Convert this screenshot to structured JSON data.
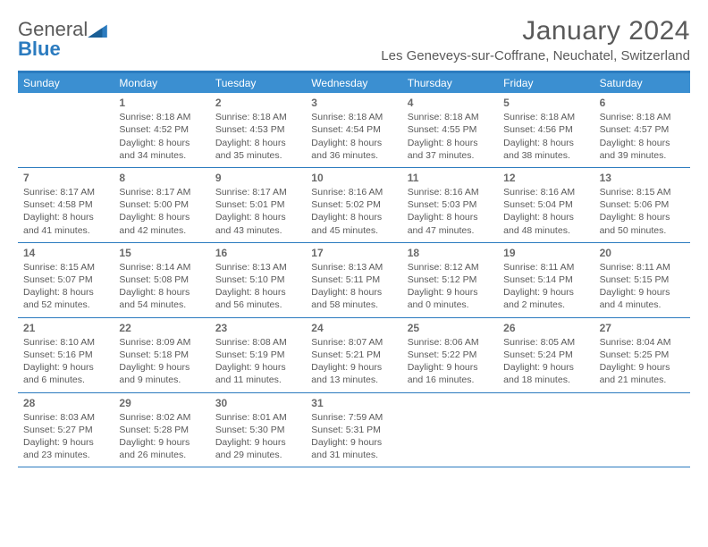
{
  "brand": {
    "part1": "General",
    "part2": "Blue"
  },
  "header": {
    "title": "January 2024",
    "location": "Les Geneveys-sur-Coffrane, Neuchatel, Switzerland"
  },
  "styling": {
    "accent_color": "#2b7bbf",
    "header_bg": "#3b8fd1",
    "header_text_color": "#ffffff",
    "body_text_color": "#5a5a5a",
    "day_num_color": "#6a6a6a",
    "background": "#ffffff",
    "title_fontsize": 30,
    "location_fontsize": 15,
    "weekday_fontsize": 12,
    "day_fontsize": 10.5,
    "day_num_fontsize": 12
  },
  "weekdays": [
    "Sunday",
    "Monday",
    "Tuesday",
    "Wednesday",
    "Thursday",
    "Friday",
    "Saturday"
  ],
  "weeks": [
    [
      {
        "num": "",
        "lines": []
      },
      {
        "num": "1",
        "lines": [
          "Sunrise: 8:18 AM",
          "Sunset: 4:52 PM",
          "Daylight: 8 hours",
          "and 34 minutes."
        ]
      },
      {
        "num": "2",
        "lines": [
          "Sunrise: 8:18 AM",
          "Sunset: 4:53 PM",
          "Daylight: 8 hours",
          "and 35 minutes."
        ]
      },
      {
        "num": "3",
        "lines": [
          "Sunrise: 8:18 AM",
          "Sunset: 4:54 PM",
          "Daylight: 8 hours",
          "and 36 minutes."
        ]
      },
      {
        "num": "4",
        "lines": [
          "Sunrise: 8:18 AM",
          "Sunset: 4:55 PM",
          "Daylight: 8 hours",
          "and 37 minutes."
        ]
      },
      {
        "num": "5",
        "lines": [
          "Sunrise: 8:18 AM",
          "Sunset: 4:56 PM",
          "Daylight: 8 hours",
          "and 38 minutes."
        ]
      },
      {
        "num": "6",
        "lines": [
          "Sunrise: 8:18 AM",
          "Sunset: 4:57 PM",
          "Daylight: 8 hours",
          "and 39 minutes."
        ]
      }
    ],
    [
      {
        "num": "7",
        "lines": [
          "Sunrise: 8:17 AM",
          "Sunset: 4:58 PM",
          "Daylight: 8 hours",
          "and 41 minutes."
        ]
      },
      {
        "num": "8",
        "lines": [
          "Sunrise: 8:17 AM",
          "Sunset: 5:00 PM",
          "Daylight: 8 hours",
          "and 42 minutes."
        ]
      },
      {
        "num": "9",
        "lines": [
          "Sunrise: 8:17 AM",
          "Sunset: 5:01 PM",
          "Daylight: 8 hours",
          "and 43 minutes."
        ]
      },
      {
        "num": "10",
        "lines": [
          "Sunrise: 8:16 AM",
          "Sunset: 5:02 PM",
          "Daylight: 8 hours",
          "and 45 minutes."
        ]
      },
      {
        "num": "11",
        "lines": [
          "Sunrise: 8:16 AM",
          "Sunset: 5:03 PM",
          "Daylight: 8 hours",
          "and 47 minutes."
        ]
      },
      {
        "num": "12",
        "lines": [
          "Sunrise: 8:16 AM",
          "Sunset: 5:04 PM",
          "Daylight: 8 hours",
          "and 48 minutes."
        ]
      },
      {
        "num": "13",
        "lines": [
          "Sunrise: 8:15 AM",
          "Sunset: 5:06 PM",
          "Daylight: 8 hours",
          "and 50 minutes."
        ]
      }
    ],
    [
      {
        "num": "14",
        "lines": [
          "Sunrise: 8:15 AM",
          "Sunset: 5:07 PM",
          "Daylight: 8 hours",
          "and 52 minutes."
        ]
      },
      {
        "num": "15",
        "lines": [
          "Sunrise: 8:14 AM",
          "Sunset: 5:08 PM",
          "Daylight: 8 hours",
          "and 54 minutes."
        ]
      },
      {
        "num": "16",
        "lines": [
          "Sunrise: 8:13 AM",
          "Sunset: 5:10 PM",
          "Daylight: 8 hours",
          "and 56 minutes."
        ]
      },
      {
        "num": "17",
        "lines": [
          "Sunrise: 8:13 AM",
          "Sunset: 5:11 PM",
          "Daylight: 8 hours",
          "and 58 minutes."
        ]
      },
      {
        "num": "18",
        "lines": [
          "Sunrise: 8:12 AM",
          "Sunset: 5:12 PM",
          "Daylight: 9 hours",
          "and 0 minutes."
        ]
      },
      {
        "num": "19",
        "lines": [
          "Sunrise: 8:11 AM",
          "Sunset: 5:14 PM",
          "Daylight: 9 hours",
          "and 2 minutes."
        ]
      },
      {
        "num": "20",
        "lines": [
          "Sunrise: 8:11 AM",
          "Sunset: 5:15 PM",
          "Daylight: 9 hours",
          "and 4 minutes."
        ]
      }
    ],
    [
      {
        "num": "21",
        "lines": [
          "Sunrise: 8:10 AM",
          "Sunset: 5:16 PM",
          "Daylight: 9 hours",
          "and 6 minutes."
        ]
      },
      {
        "num": "22",
        "lines": [
          "Sunrise: 8:09 AM",
          "Sunset: 5:18 PM",
          "Daylight: 9 hours",
          "and 9 minutes."
        ]
      },
      {
        "num": "23",
        "lines": [
          "Sunrise: 8:08 AM",
          "Sunset: 5:19 PM",
          "Daylight: 9 hours",
          "and 11 minutes."
        ]
      },
      {
        "num": "24",
        "lines": [
          "Sunrise: 8:07 AM",
          "Sunset: 5:21 PM",
          "Daylight: 9 hours",
          "and 13 minutes."
        ]
      },
      {
        "num": "25",
        "lines": [
          "Sunrise: 8:06 AM",
          "Sunset: 5:22 PM",
          "Daylight: 9 hours",
          "and 16 minutes."
        ]
      },
      {
        "num": "26",
        "lines": [
          "Sunrise: 8:05 AM",
          "Sunset: 5:24 PM",
          "Daylight: 9 hours",
          "and 18 minutes."
        ]
      },
      {
        "num": "27",
        "lines": [
          "Sunrise: 8:04 AM",
          "Sunset: 5:25 PM",
          "Daylight: 9 hours",
          "and 21 minutes."
        ]
      }
    ],
    [
      {
        "num": "28",
        "lines": [
          "Sunrise: 8:03 AM",
          "Sunset: 5:27 PM",
          "Daylight: 9 hours",
          "and 23 minutes."
        ]
      },
      {
        "num": "29",
        "lines": [
          "Sunrise: 8:02 AM",
          "Sunset: 5:28 PM",
          "Daylight: 9 hours",
          "and 26 minutes."
        ]
      },
      {
        "num": "30",
        "lines": [
          "Sunrise: 8:01 AM",
          "Sunset: 5:30 PM",
          "Daylight: 9 hours",
          "and 29 minutes."
        ]
      },
      {
        "num": "31",
        "lines": [
          "Sunrise: 7:59 AM",
          "Sunset: 5:31 PM",
          "Daylight: 9 hours",
          "and 31 minutes."
        ]
      },
      {
        "num": "",
        "lines": []
      },
      {
        "num": "",
        "lines": []
      },
      {
        "num": "",
        "lines": []
      }
    ]
  ]
}
